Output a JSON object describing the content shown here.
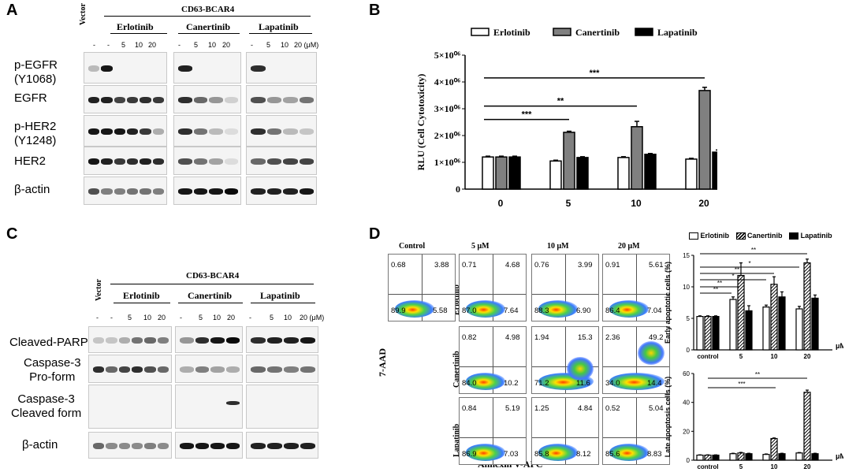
{
  "panelA": {
    "label": "A",
    "vector": "Vector",
    "group": "CD63-BCAR4",
    "drugs": [
      "Erlotinib",
      "Canertinib",
      "Lapatinib"
    ],
    "doses": [
      "-",
      "-",
      "5",
      "10",
      "20",
      "-",
      "5",
      "10",
      "20",
      "-",
      "5",
      "10",
      "20 (μM)"
    ],
    "rows": [
      "p-EGFR\n(Y1068)",
      "EGFR",
      "p-HER2\n(Y1248)",
      "HER2",
      "β-actin"
    ]
  },
  "panelB": {
    "label": "B",
    "chart_data": {
      "type": "bar",
      "categories": [
        "0",
        "5",
        "10",
        "20"
      ],
      "series": [
        {
          "name": "Erlotinib",
          "values": [
            1.2,
            1.05,
            1.18,
            1.12
          ],
          "color": "#ffffff"
        },
        {
          "name": "Canertinib",
          "values": [
            1.2,
            2.12,
            2.33,
            3.68
          ],
          "color": "#808080"
        },
        {
          "name": "Lapatinib",
          "values": [
            1.2,
            1.18,
            1.3,
            1.38
          ],
          "color": "#000000"
        }
      ],
      "errors": [
        [
          0.03,
          0.03,
          0.03,
          0.03
        ],
        [
          0.03,
          0.04,
          0.2,
          0.12
        ],
        [
          0.03,
          0.03,
          0.03,
          0.08
        ]
      ],
      "ylim": [
        0,
        5
      ],
      "yticks": [
        "0",
        "1×10⁰⁶",
        "2×10⁰⁶",
        "3×10⁰⁶",
        "4×10⁰⁶",
        "5×10⁰⁶"
      ],
      "ylabel": "RLU (Cell Cytotoxicity)",
      "xunit": "μM",
      "annotations": [
        {
          "text": "***",
          "from": "0",
          "to": "20"
        },
        {
          "text": "**",
          "from": "0",
          "to": "10"
        },
        {
          "text": "***",
          "from": "0",
          "to": "5"
        }
      ]
    }
  },
  "panelC": {
    "label": "C",
    "vector": "Vector",
    "group": "CD63-BCAR4",
    "drugs": [
      "Erlotinib",
      "Canertinib",
      "Lapatinib"
    ],
    "doses": [
      "-",
      "-",
      "5",
      "10",
      "20",
      "-",
      "5",
      "10",
      "20",
      "-",
      "5",
      "10",
      "20 (μM)"
    ],
    "rows": [
      "Cleaved-PARP",
      "Caspase-3\nPro-form",
      "Caspase-3\nCleaved form",
      "β-actin"
    ]
  },
  "panelD": {
    "label": "D",
    "col_headers": [
      "Control",
      "5 μM",
      "10 μM",
      "20 μM"
    ],
    "row_headers": [
      "Erlotinib",
      "Canertinib",
      "Lapatinib"
    ],
    "yaxis": "7-AAD",
    "xaxis": "Annexin V-APC",
    "control": [
      "0.68",
      "3.88",
      "89.9",
      "5.58"
    ],
    "plots": [
      [
        [
          "0.71",
          "4.68",
          "87.0",
          "7.64"
        ],
        [
          "0.76",
          "3.99",
          "88.3",
          "6.90"
        ],
        [
          "0.91",
          "5.61",
          "86.4",
          "7.04"
        ]
      ],
      [
        [
          "0.82",
          "4.98",
          "84.0",
          "10.2"
        ],
        [
          "1.94",
          "15.3",
          "71.2",
          "11.6"
        ],
        [
          "2.36",
          "49.2",
          "34.0",
          "14.4"
        ]
      ],
      [
        [
          "0.84",
          "5.19",
          "86.9",
          "7.03"
        ],
        [
          "1.25",
          "4.84",
          "85.8",
          "8.12"
        ],
        [
          "0.52",
          "5.04",
          "85.6",
          "8.83"
        ]
      ]
    ],
    "legend": [
      "Erlotinib",
      "Canertinib",
      "Lapatinib"
    ],
    "chart_data": [
      {
        "type": "bar",
        "ylabel": "Early apoptotic cells (%)",
        "categories": [
          "control",
          "5",
          "10",
          "20"
        ],
        "xunit": "μM",
        "ylim": [
          0,
          15
        ],
        "yticks": [
          "0",
          "5",
          "10",
          "15"
        ],
        "series": [
          {
            "name": "Erlotinib",
            "values": [
              5.3,
              8.0,
              6.8,
              6.5
            ]
          },
          {
            "name": "Canertinib",
            "values": [
              5.3,
              11.8,
              10.4,
              13.8
            ]
          },
          {
            "name": "Lapatinib",
            "values": [
              5.3,
              6.2,
              8.4,
              8.2
            ]
          }
        ],
        "errors": [
          [
            0.1,
            0.4,
            0.3,
            0.4
          ],
          [
            0.1,
            2.0,
            1.2,
            0.6
          ],
          [
            0.1,
            0.8,
            0.8,
            0.5
          ]
        ],
        "annotations": [
          "**",
          "**",
          "*",
          "**",
          "*",
          "**"
        ]
      },
      {
        "type": "bar",
        "ylabel": "Late apoptosis cells (%)",
        "categories": [
          "control",
          "5",
          "10",
          "20"
        ],
        "xunit": "μM",
        "ylim": [
          0,
          60
        ],
        "yticks": [
          "0",
          "20",
          "40",
          "60"
        ],
        "series": [
          {
            "name": "Erlotinib",
            "values": [
              3.5,
              4.5,
              4.0,
              5.0
            ]
          },
          {
            "name": "Canertinib",
            "values": [
              3.5,
              5.0,
              15.0,
              47.0
            ]
          },
          {
            "name": "Lapatinib",
            "values": [
              3.5,
              4.5,
              4.5,
              4.5
            ]
          }
        ],
        "errors": [
          [
            0.2,
            0.3,
            0.3,
            0.3
          ],
          [
            0.2,
            0.4,
            0.4,
            1.5
          ],
          [
            0.2,
            0.3,
            0.3,
            0.3
          ]
        ],
        "annotations": [
          "***",
          "**"
        ]
      }
    ]
  }
}
